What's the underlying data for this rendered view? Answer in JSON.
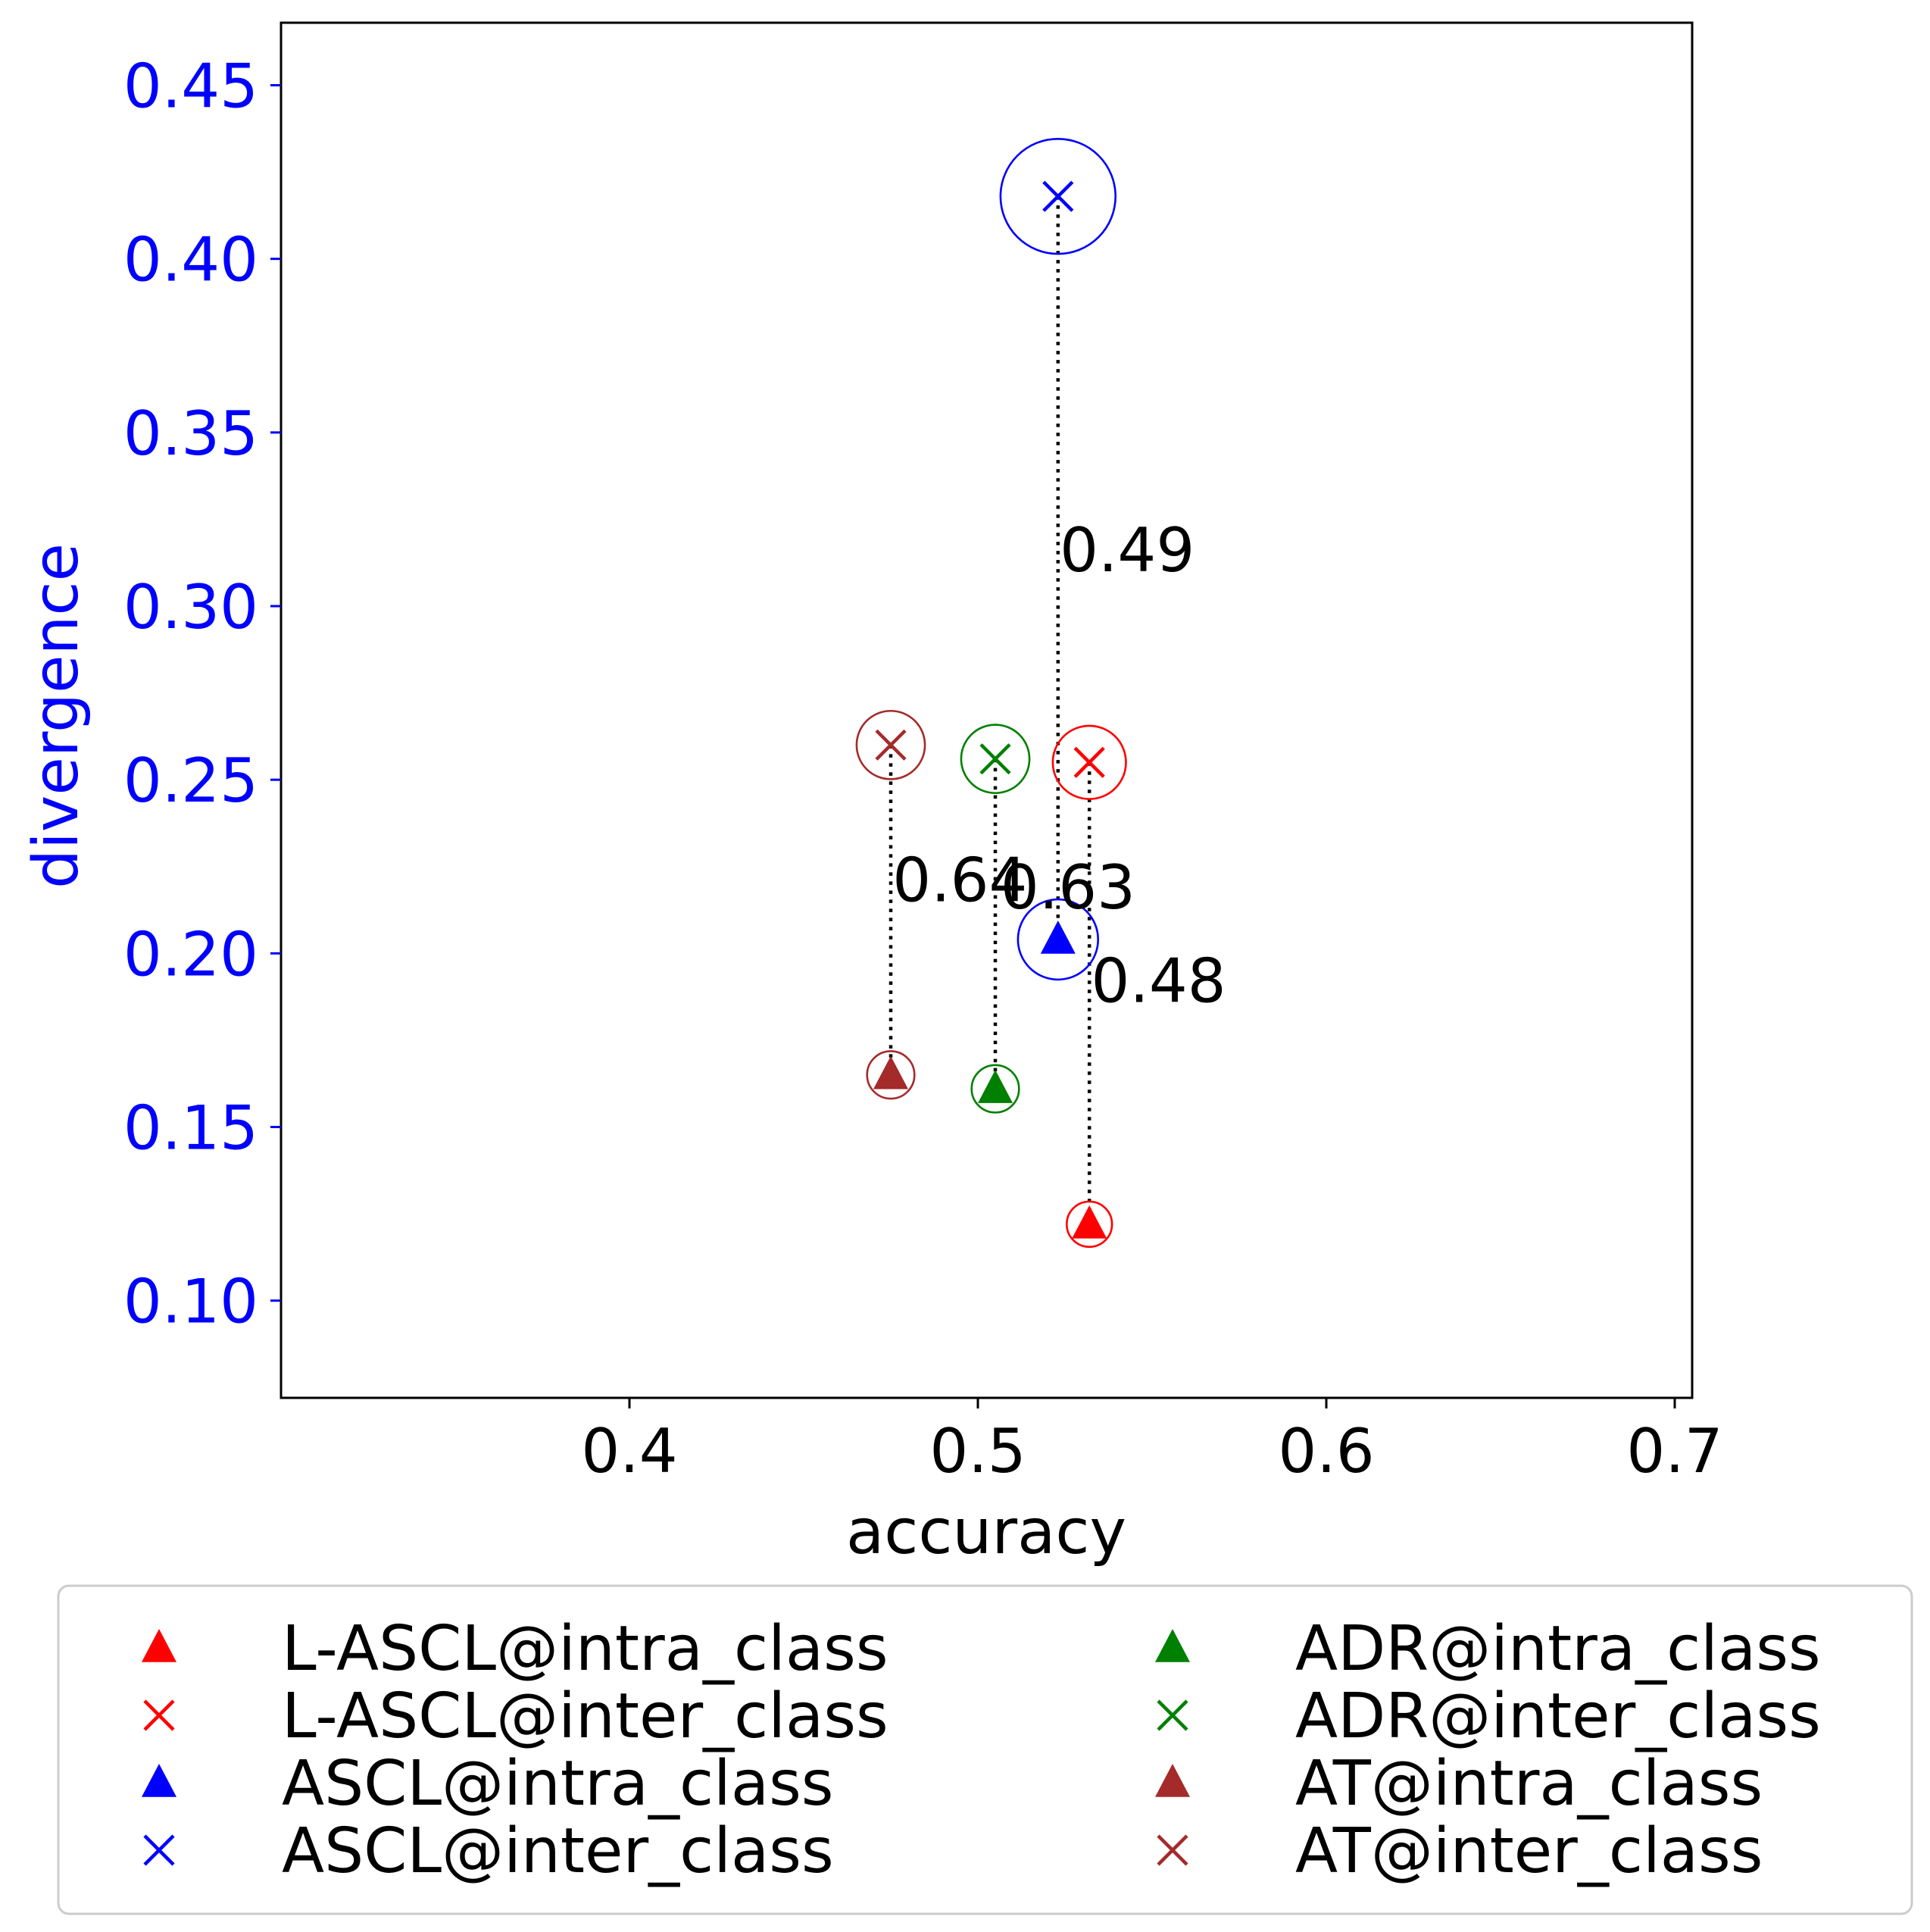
{
  "chart_data": {
    "type": "scatter",
    "xlabel": "accuracy",
    "ylabel": "divergence",
    "xlim": [
      0.3,
      0.705
    ],
    "ylim": [
      0.072,
      0.468
    ],
    "xticks": [
      0.4,
      0.5,
      0.6,
      0.7
    ],
    "xtick_labels": [
      "0.4",
      "0.5",
      "0.6",
      "0.7"
    ],
    "yticks": [
      0.1,
      0.15,
      0.2,
      0.25,
      0.3,
      0.35,
      0.4,
      0.45
    ],
    "ytick_labels": [
      "0.10",
      "0.15",
      "0.20",
      "0.25",
      "0.30",
      "0.35",
      "0.40",
      "0.45"
    ],
    "ylabel_color": "#0000ff",
    "grid": false,
    "legend_position": "bottom, outside plot, 2 columns",
    "series": [
      {
        "name": "L-ASCL@intra_class",
        "marker": "triangle",
        "color": "#ff0000",
        "x": 0.532,
        "y": 0.122,
        "spread": 0.0065
      },
      {
        "name": "L-ASCL@inter_class",
        "marker": "x",
        "color": "#ff0000",
        "x": 0.532,
        "y": 0.255,
        "spread": 0.0105
      },
      {
        "name": "ASCL@intra_class",
        "marker": "triangle",
        "color": "#0000ff",
        "x": 0.523,
        "y": 0.204,
        "spread": 0.0115
      },
      {
        "name": "ASCL@inter_class",
        "marker": "x",
        "color": "#0000ff",
        "x": 0.523,
        "y": 0.418,
        "spread": 0.0165
      },
      {
        "name": "ADR@intra_class",
        "marker": "triangle",
        "color": "#008000",
        "x": 0.505,
        "y": 0.161,
        "spread": 0.0068
      },
      {
        "name": "ADR@inter_class",
        "marker": "x",
        "color": "#008000",
        "x": 0.505,
        "y": 0.256,
        "spread": 0.0098
      },
      {
        "name": "AT@intra_class",
        "marker": "triangle",
        "color": "#a52a2a",
        "x": 0.475,
        "y": 0.165,
        "spread": 0.0068
      },
      {
        "name": "AT@inter_class",
        "marker": "x",
        "color": "#a52a2a",
        "x": 0.475,
        "y": 0.26,
        "spread": 0.0098
      }
    ],
    "connections": [
      {
        "method": "ASCL",
        "color": "#0000ff",
        "x": 0.523,
        "y_from": 0.204,
        "y_to": 0.418,
        "label": "0.49",
        "label_x": 0.5235,
        "label_y": 0.31
      },
      {
        "method": "L-ASCL",
        "color": "#ff0000",
        "x": 0.532,
        "y_from": 0.122,
        "y_to": 0.255,
        "label": "0.48",
        "label_x": 0.5325,
        "label_y": 0.186
      },
      {
        "method": "ADR",
        "color": "#008000",
        "x": 0.505,
        "y_from": 0.161,
        "y_to": 0.256,
        "label": "0.63",
        "label_x": 0.5065,
        "label_y": 0.213
      },
      {
        "method": "AT",
        "color": "#a52a2a",
        "x": 0.475,
        "y_from": 0.165,
        "y_to": 0.26,
        "label": "0.64",
        "label_x": 0.4755,
        "label_y": 0.215
      }
    ]
  }
}
